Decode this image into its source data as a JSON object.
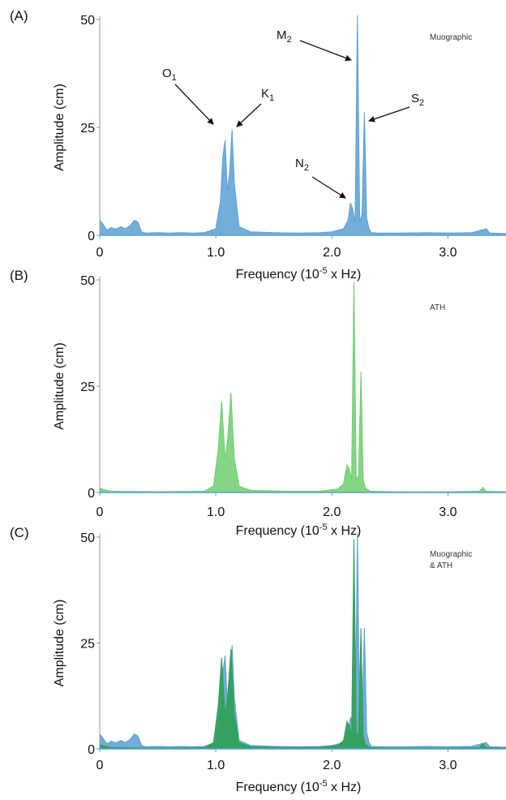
{
  "chart_data": [
    {
      "type": "area",
      "panel_label": "(A)",
      "legend": [
        "Muographic"
      ],
      "xlabel": "Frequency (10",
      "xlabel_exp": "-5",
      "xlabel_tail": " x Hz)",
      "ylabel": "Amplitude (cm)",
      "xlim": [
        0,
        3.5
      ],
      "ylim": [
        0,
        50
      ],
      "xticks": [
        "0",
        "1.0",
        "2.0",
        "3.0"
      ],
      "xtick_values": [
        0,
        1.0,
        2.0,
        3.0
      ],
      "yticks": [
        "0",
        "25",
        "50"
      ],
      "ytick_values": [
        0,
        25,
        50
      ],
      "annotations": [
        {
          "label": "O",
          "sub": "1"
        },
        {
          "label": "K",
          "sub": "1"
        },
        {
          "label": "N",
          "sub": "2"
        },
        {
          "label": "M",
          "sub": "2"
        },
        {
          "label": "S",
          "sub": "2"
        }
      ],
      "series": [
        {
          "name": "Muographic",
          "color": "#5b9fd4",
          "x": [
            0,
            0.03,
            0.06,
            0.1,
            0.14,
            0.18,
            0.22,
            0.26,
            0.3,
            0.33,
            0.36,
            0.4,
            0.5,
            0.6,
            0.7,
            0.8,
            0.9,
            1.0,
            1.04,
            1.06,
            1.08,
            1.1,
            1.12,
            1.14,
            1.16,
            1.2,
            1.3,
            1.5,
            1.7,
            1.9,
            2.0,
            2.1,
            2.14,
            2.16,
            2.18,
            2.2,
            2.22,
            2.24,
            2.26,
            2.28,
            2.3,
            2.32,
            2.34,
            2.4,
            2.6,
            2.8,
            3.0,
            3.2,
            3.33,
            3.36,
            3.5
          ],
          "values": [
            3.5,
            2.5,
            1.2,
            1.8,
            1.4,
            2.0,
            1.5,
            2.2,
            3.5,
            3.0,
            0.8,
            0.5,
            0.6,
            0.5,
            0.6,
            0.5,
            0.6,
            1.5,
            8,
            18,
            22,
            10,
            15,
            24.5,
            12,
            2,
            0.8,
            0.6,
            0.5,
            0.6,
            0.8,
            1.5,
            3.5,
            7.5,
            6,
            3,
            51,
            3,
            5,
            28.5,
            4,
            1.5,
            0.6,
            0.5,
            0.5,
            0.6,
            0.5,
            0.6,
            1.5,
            0.5,
            0.4
          ]
        }
      ]
    },
    {
      "type": "area",
      "panel_label": "(B)",
      "legend": [
        "ATH"
      ],
      "xlabel": "Frequency (10",
      "xlabel_exp": "-5",
      "xlabel_tail": " x Hz)",
      "ylabel": "Amplitude (cm)",
      "xlim": [
        0,
        3.5
      ],
      "ylim": [
        0,
        50
      ],
      "xticks": [
        "0",
        "1.0",
        "2.0",
        "3.0"
      ],
      "xtick_values": [
        0,
        1.0,
        2.0,
        3.0
      ],
      "yticks": [
        "0",
        "25",
        "50"
      ],
      "ytick_values": [
        0,
        25,
        50
      ],
      "annotations": [],
      "series": [
        {
          "name": "ATH",
          "color": "#6fce6f",
          "x": [
            0,
            0.05,
            0.1,
            0.5,
            0.9,
            0.98,
            1.02,
            1.05,
            1.08,
            1.1,
            1.13,
            1.16,
            1.2,
            1.3,
            1.6,
            1.9,
            2.05,
            2.1,
            2.13,
            2.15,
            2.17,
            2.19,
            2.21,
            2.23,
            2.25,
            2.27,
            2.29,
            2.33,
            2.5,
            3.0,
            3.27,
            3.3,
            3.33,
            3.5
          ],
          "values": [
            1.0,
            0.6,
            0.3,
            0.2,
            0.3,
            1.5,
            10,
            21.5,
            8,
            12,
            23.5,
            8,
            1.5,
            0.5,
            0.3,
            0.3,
            0.8,
            2,
            6.5,
            5.5,
            3,
            49.5,
            3,
            4,
            28.5,
            3,
            1,
            0.3,
            0.2,
            0.2,
            0.3,
            1.2,
            0.3,
            0.2
          ]
        }
      ]
    },
    {
      "type": "area",
      "panel_label": "(C)",
      "legend": [
        "Muographic",
        "& ATH"
      ],
      "xlabel": "Frequency (10",
      "xlabel_exp": "-5",
      "xlabel_tail": " x Hz)",
      "ylabel": "Amplitude (cm)",
      "xlim": [
        0,
        3.5
      ],
      "ylim": [
        0,
        50
      ],
      "xticks": [
        "0",
        "1.0",
        "2.0",
        "3.0"
      ],
      "xtick_values": [
        0,
        1.0,
        2.0,
        3.0
      ],
      "yticks": [
        "0",
        "25",
        "50"
      ],
      "ytick_values": [
        0,
        25,
        50
      ],
      "annotations": [],
      "series": [
        {
          "name": "Muographic",
          "color": "#5b9fd4",
          "x": [
            0,
            0.03,
            0.06,
            0.1,
            0.14,
            0.18,
            0.22,
            0.26,
            0.3,
            0.33,
            0.36,
            0.4,
            0.5,
            0.6,
            0.7,
            0.8,
            0.9,
            1.0,
            1.04,
            1.06,
            1.08,
            1.1,
            1.12,
            1.14,
            1.16,
            1.2,
            1.3,
            1.5,
            1.7,
            1.9,
            2.0,
            2.1,
            2.14,
            2.16,
            2.18,
            2.2,
            2.22,
            2.24,
            2.26,
            2.28,
            2.3,
            2.32,
            2.34,
            2.4,
            2.6,
            2.8,
            3.0,
            3.2,
            3.33,
            3.36,
            3.5
          ],
          "values": [
            3.5,
            2.5,
            1.2,
            1.8,
            1.4,
            2.0,
            1.5,
            2.2,
            3.5,
            3.0,
            0.8,
            0.5,
            0.6,
            0.5,
            0.6,
            0.5,
            0.6,
            1.5,
            8,
            18,
            22,
            10,
            15,
            24.5,
            12,
            2,
            0.8,
            0.6,
            0.5,
            0.6,
            0.8,
            1.5,
            3.5,
            7.5,
            6,
            3,
            51,
            3,
            5,
            28.5,
            4,
            1.5,
            0.6,
            0.5,
            0.5,
            0.6,
            0.5,
            0.6,
            1.5,
            0.5,
            0.4
          ]
        },
        {
          "name": "ATH",
          "color": "#2fa05a",
          "x": [
            0,
            0.05,
            0.1,
            0.5,
            0.9,
            0.98,
            1.02,
            1.05,
            1.08,
            1.1,
            1.13,
            1.16,
            1.2,
            1.3,
            1.6,
            1.9,
            2.05,
            2.1,
            2.13,
            2.15,
            2.17,
            2.19,
            2.21,
            2.23,
            2.25,
            2.27,
            2.29,
            2.33,
            2.5,
            3.0,
            3.27,
            3.3,
            3.33,
            3.5
          ],
          "values": [
            1.0,
            0.6,
            0.3,
            0.2,
            0.3,
            1.5,
            10,
            21.5,
            8,
            12,
            23.5,
            8,
            1.5,
            0.5,
            0.3,
            0.3,
            0.8,
            2,
            6.5,
            5.5,
            3,
            49.5,
            3,
            4,
            28.5,
            3,
            1,
            0.3,
            0.2,
            0.2,
            0.3,
            1.2,
            0.3,
            0.2
          ]
        }
      ]
    }
  ]
}
